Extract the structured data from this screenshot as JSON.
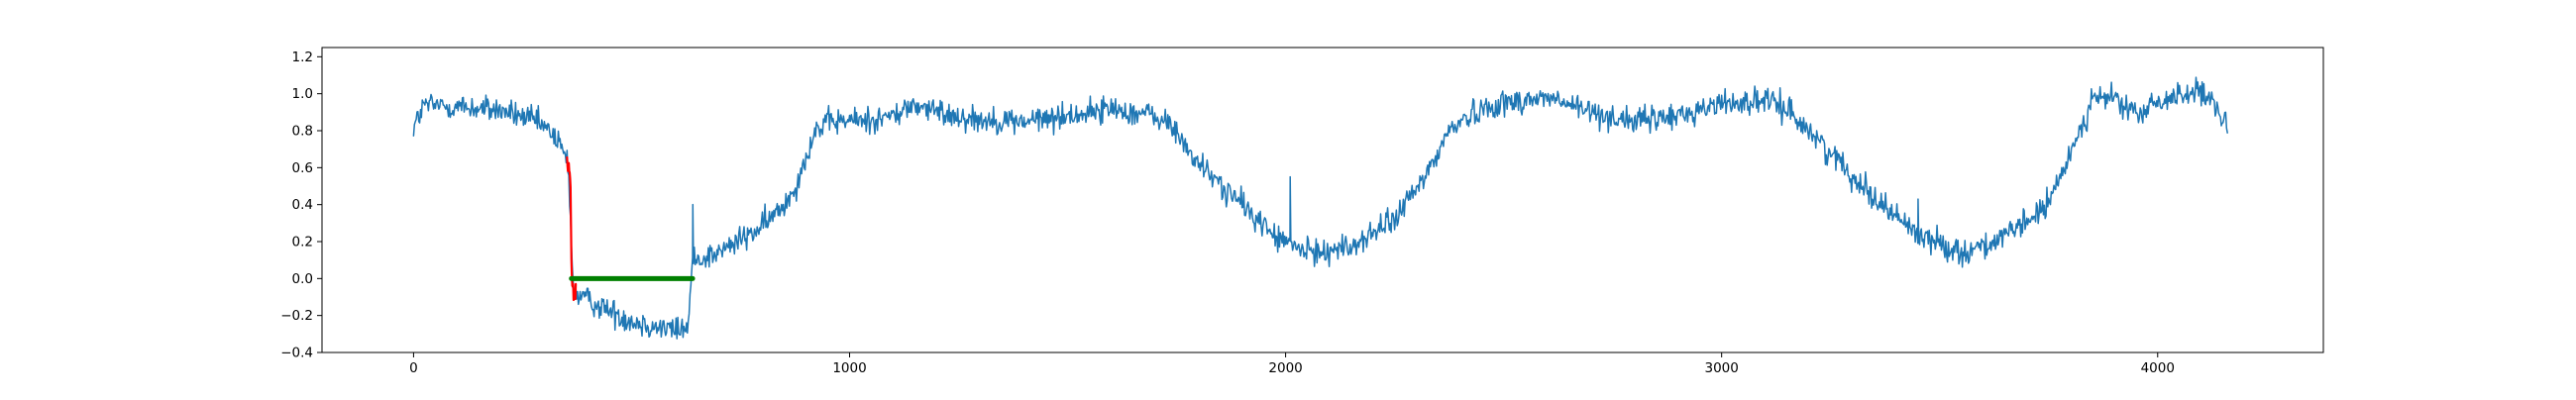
{
  "chart_data": {
    "type": "line",
    "title": "",
    "xlabel": "",
    "ylabel": "",
    "xlim": [
      -210,
      4380
    ],
    "ylim": [
      -0.4,
      1.25
    ],
    "x_ticks": [
      0,
      1000,
      2000,
      3000,
      4000
    ],
    "x_tick_labels": [
      "0",
      "1000",
      "2000",
      "3000",
      "4000"
    ],
    "y_ticks": [
      -0.4,
      -0.2,
      0.0,
      0.2,
      0.4,
      0.6,
      0.8,
      1.0,
      1.2
    ],
    "y_tick_labels": [
      "−0.4",
      "−0.2",
      "0.0",
      "0.2",
      "0.4",
      "0.6",
      "0.8",
      "1.0",
      "1.2"
    ],
    "grid": false,
    "legend": "none",
    "series": [
      {
        "color": "#1f77b4",
        "linewidth": 1.5,
        "noise": 0.035,
        "x_range": [
          0,
          4160
        ],
        "spikes": [
          [
            640,
            0.4
          ],
          [
            2010,
            0.55
          ],
          [
            3450,
            0.43
          ],
          [
            575,
            -0.05
          ]
        ],
        "anchors": [
          [
            0,
            0.82
          ],
          [
            25,
            0.94
          ],
          [
            100,
            0.93
          ],
          [
            200,
            0.91
          ],
          [
            280,
            0.85
          ],
          [
            320,
            0.78
          ],
          [
            340,
            0.7
          ],
          [
            355,
            0.62
          ],
          [
            362,
            0.2
          ],
          [
            368,
            -0.08
          ],
          [
            420,
            -0.14
          ],
          [
            500,
            -0.23
          ],
          [
            560,
            -0.26
          ],
          [
            600,
            -0.28
          ],
          [
            630,
            -0.26
          ],
          [
            640,
            0.1
          ],
          [
            700,
            0.14
          ],
          [
            800,
            0.28
          ],
          [
            850,
            0.4
          ],
          [
            880,
            0.52
          ],
          [
            920,
            0.8
          ],
          [
            960,
            0.85
          ],
          [
            1050,
            0.86
          ],
          [
            1100,
            0.88
          ],
          [
            1150,
            0.94
          ],
          [
            1200,
            0.9
          ],
          [
            1300,
            0.86
          ],
          [
            1400,
            0.85
          ],
          [
            1500,
            0.88
          ],
          [
            1600,
            0.92
          ],
          [
            1700,
            0.88
          ],
          [
            1740,
            0.82
          ],
          [
            1800,
            0.62
          ],
          [
            1900,
            0.4
          ],
          [
            1980,
            0.22
          ],
          [
            2050,
            0.14
          ],
          [
            2150,
            0.17
          ],
          [
            2250,
            0.32
          ],
          [
            2320,
            0.55
          ],
          [
            2380,
            0.82
          ],
          [
            2450,
            0.92
          ],
          [
            2500,
            0.95
          ],
          [
            2600,
            0.98
          ],
          [
            2700,
            0.9
          ],
          [
            2800,
            0.85
          ],
          [
            2900,
            0.88
          ],
          [
            3000,
            0.95
          ],
          [
            3100,
            0.96
          ],
          [
            3150,
            0.92
          ],
          [
            3250,
            0.68
          ],
          [
            3350,
            0.44
          ],
          [
            3450,
            0.24
          ],
          [
            3550,
            0.14
          ],
          [
            3650,
            0.22
          ],
          [
            3750,
            0.4
          ],
          [
            3800,
            0.68
          ],
          [
            3850,
            0.97
          ],
          [
            3900,
            0.98
          ],
          [
            3950,
            0.88
          ],
          [
            4000,
            0.95
          ],
          [
            4080,
            1.02
          ],
          [
            4120,
            0.96
          ],
          [
            4160,
            0.82
          ]
        ]
      },
      {
        "color": "#ff0000",
        "linewidth": 2.2,
        "noise": 0.02,
        "anchors": [
          [
            352,
            0.64
          ],
          [
            356,
            0.58
          ],
          [
            360,
            0.52
          ],
          [
            362,
            0.1
          ],
          [
            364,
            -0.05
          ],
          [
            368,
            -0.11
          ],
          [
            372,
            -0.06
          ]
        ]
      },
      {
        "color": "#008000",
        "linewidth": 5,
        "anchors": [
          [
            362,
            0.0
          ],
          [
            640,
            0.0
          ]
        ]
      }
    ]
  }
}
